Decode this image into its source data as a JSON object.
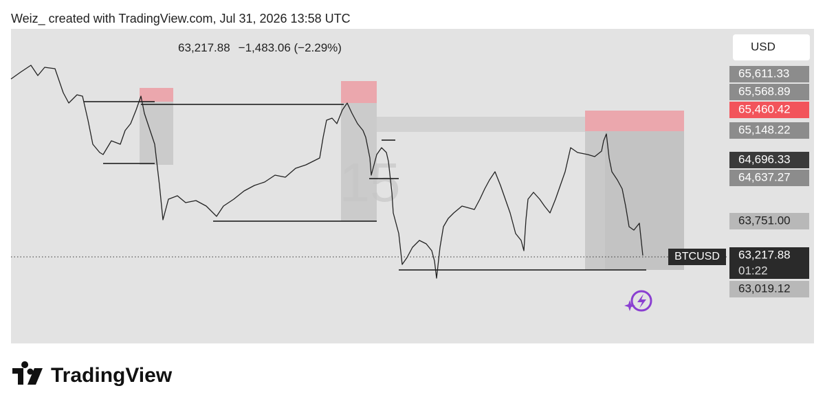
{
  "header": {
    "caption": "Weiz_ created with TradingView.com, Jul 31, 2026 13:58 UTC"
  },
  "legend": {
    "last_price": "63,217.88",
    "change": "−1,483.06 (−2.29%)"
  },
  "chart": {
    "watermark": "15",
    "symbol": "BTCUSD",
    "currency": "USD",
    "price_labels": [
      "65,611.33",
      "65,568.89",
      "65,460.42",
      "65,148.22",
      "64,696.33",
      "64,637.27",
      "63,751.00",
      "63,217.88",
      "63,019.12"
    ],
    "countdown": "01:22"
  },
  "footer": {
    "brand": "TradingView"
  }
}
